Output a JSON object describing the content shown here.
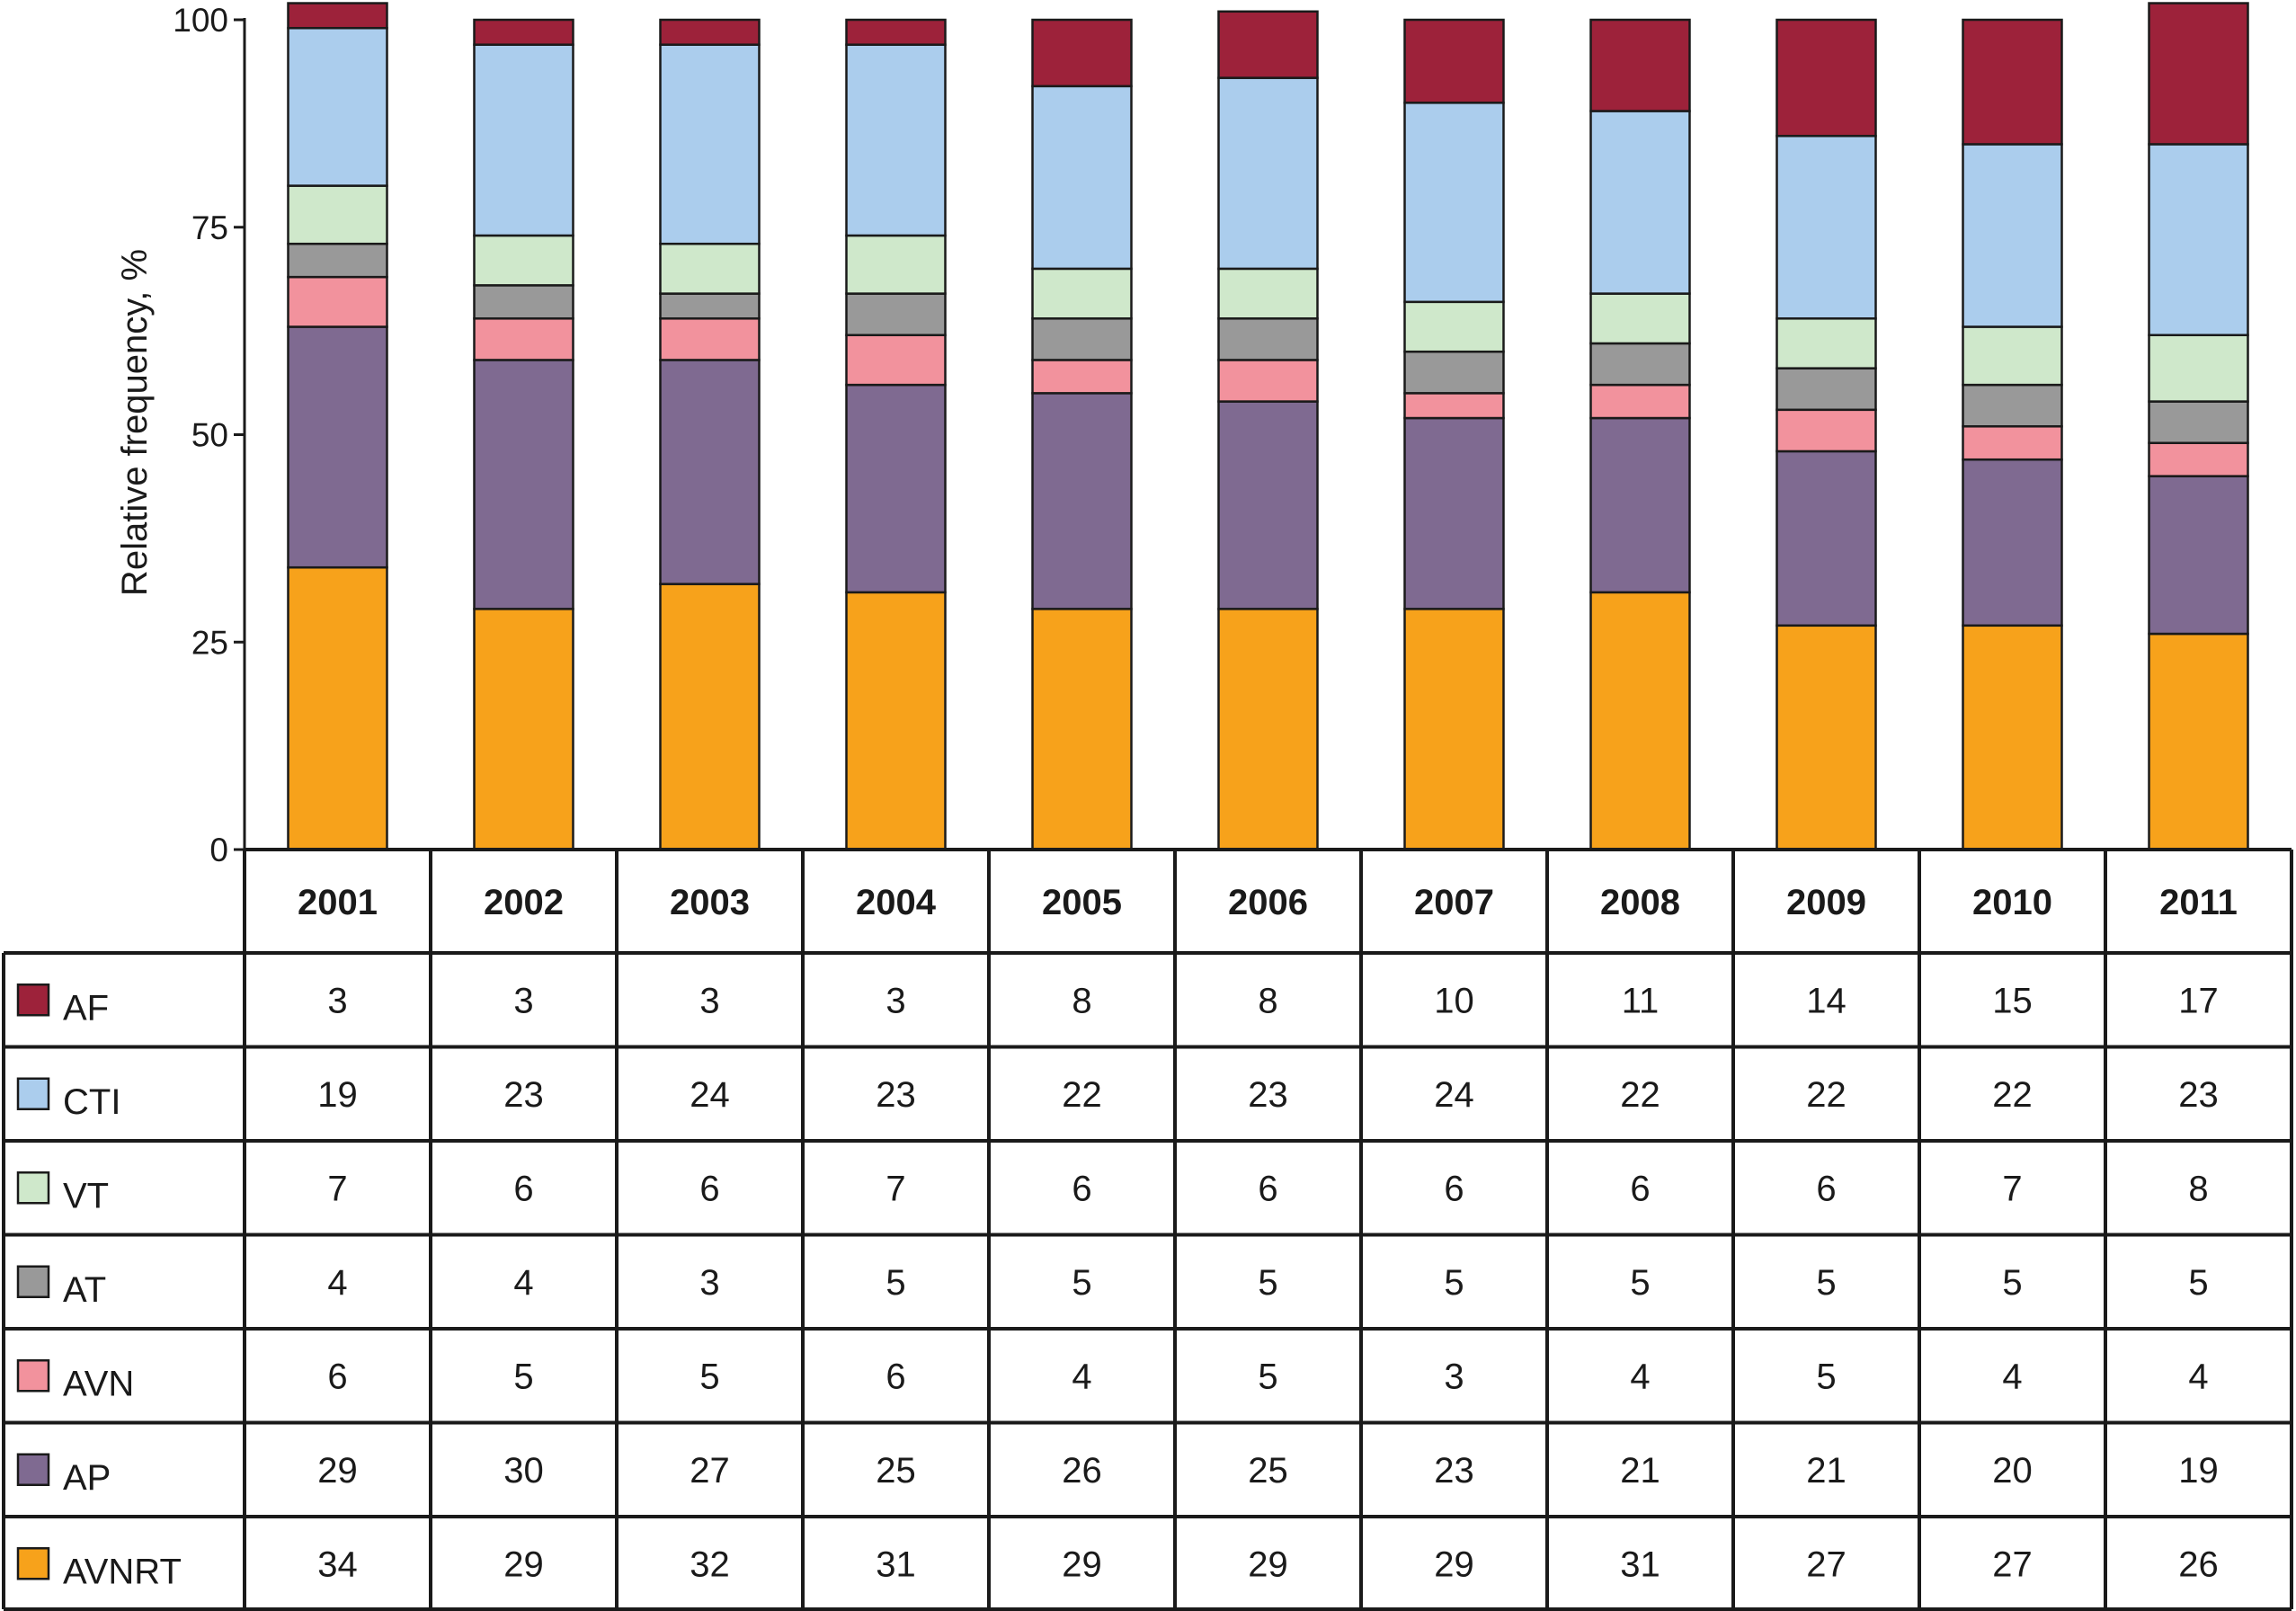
{
  "chart_data": {
    "type": "bar",
    "stacked": true,
    "ylabel": "Relative frequency, %",
    "ylim": [
      0,
      100
    ],
    "yticks": [
      "0",
      "25",
      "50",
      "75",
      "100"
    ],
    "categories": [
      "2001",
      "2002",
      "2003",
      "2004",
      "2005",
      "2006",
      "2007",
      "2008",
      "2009",
      "2010",
      "2011"
    ],
    "series": [
      {
        "name": "AVNRT",
        "color": "#f7a21b",
        "values": [
          34,
          29,
          32,
          31,
          29,
          29,
          29,
          31,
          27,
          27,
          26
        ]
      },
      {
        "name": "AP",
        "color": "#7f6a91",
        "values": [
          29,
          30,
          27,
          25,
          26,
          25,
          23,
          21,
          21,
          20,
          19
        ]
      },
      {
        "name": "AVN",
        "color": "#f2929d",
        "values": [
          6,
          5,
          5,
          6,
          4,
          5,
          3,
          4,
          5,
          4,
          4
        ]
      },
      {
        "name": "AT",
        "color": "#999999",
        "values": [
          4,
          4,
          3,
          5,
          5,
          5,
          5,
          5,
          5,
          5,
          5
        ]
      },
      {
        "name": "VT",
        "color": "#cfe8cb",
        "values": [
          7,
          6,
          6,
          7,
          6,
          6,
          6,
          6,
          6,
          7,
          8
        ]
      },
      {
        "name": "CTI",
        "color": "#abcded",
        "values": [
          19,
          23,
          24,
          23,
          22,
          23,
          24,
          22,
          22,
          22,
          23
        ]
      },
      {
        "name": "AF",
        "color": "#9d223a",
        "values": [
          3,
          3,
          3,
          3,
          8,
          8,
          10,
          11,
          14,
          15,
          17
        ]
      }
    ],
    "table_row_order": [
      "AF",
      "CTI",
      "VT",
      "AT",
      "AVN",
      "AP",
      "AVNRT"
    ],
    "grid": false,
    "legend": "data table below chart"
  }
}
